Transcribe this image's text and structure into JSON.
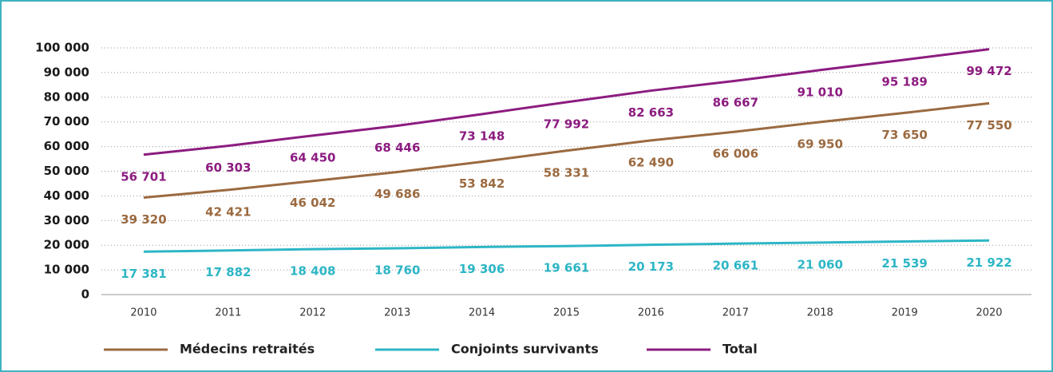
{
  "chart_data": {
    "type": "line",
    "categories": [
      "2010",
      "2011",
      "2012",
      "2013",
      "2014",
      "2015",
      "2016",
      "2017",
      "2018",
      "2019",
      "2020"
    ],
    "series": [
      {
        "name": "Médecins retraités",
        "color": "#9b6a40",
        "values": [
          39320,
          42421,
          46042,
          49686,
          53842,
          58331,
          62490,
          66006,
          69950,
          73650,
          77550
        ],
        "value_labels": [
          "39 320",
          "42 421",
          "46 042",
          "49 686",
          "53 842",
          "58 331",
          "62 490",
          "66 006",
          "69 950",
          "73 650",
          "77 550"
        ]
      },
      {
        "name": "Conjoints survivants",
        "color": "#2db6c6",
        "values": [
          17381,
          17882,
          18408,
          18760,
          19306,
          19661,
          20173,
          20661,
          21060,
          21539,
          21922
        ],
        "value_labels": [
          "17 381",
          "17 882",
          "18 408",
          "18 760",
          "19 306",
          "19 661",
          "20 173",
          "20 661",
          "21 060",
          "21 539",
          "21 922"
        ]
      },
      {
        "name": "Total",
        "color": "#8c1c80",
        "values": [
          56701,
          60303,
          64450,
          68446,
          73148,
          77992,
          82663,
          86667,
          91010,
          95189,
          99472
        ],
        "value_labels": [
          "56 701",
          "60 303",
          "64 450",
          "68 446",
          "73 148",
          "77 992",
          "82 663",
          "86 667",
          "91 010",
          "95 189",
          "99 472"
        ]
      }
    ],
    "ylim": [
      0,
      100000
    ],
    "yticks": [
      0,
      {
        "value": 10000,
        "label": "10 000"
      },
      {
        "value": 20000,
        "label": "20 000"
      },
      {
        "value": 30000,
        "label": "30 000"
      },
      {
        "value": 40000,
        "label": "40 000"
      },
      {
        "value": 50000,
        "label": "50 000"
      },
      {
        "value": 60000,
        "label": "60 000"
      },
      {
        "value": 70000,
        "label": "70 000"
      },
      {
        "value": 80000,
        "label": "80 000"
      },
      {
        "value": 90000,
        "label": "90 000"
      },
      {
        "value": 100000,
        "label": "100 000"
      }
    ],
    "grid": true,
    "legend": "bottom"
  }
}
